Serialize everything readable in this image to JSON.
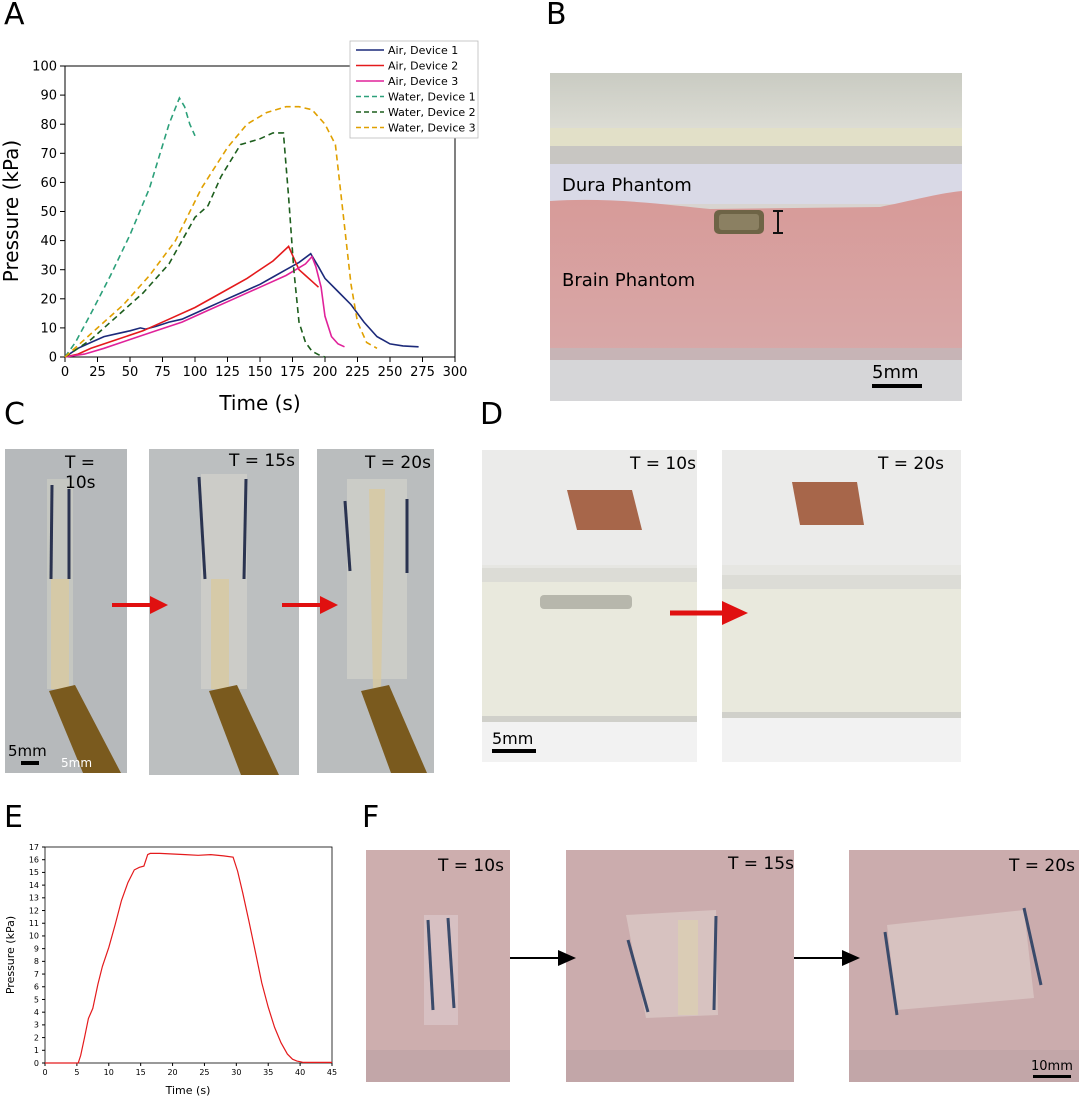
{
  "panels": {
    "A": "A",
    "B": "B",
    "C": "C",
    "D": "D",
    "E": "E",
    "F": "F"
  },
  "chart_data": [
    {
      "panel": "A",
      "type": "line",
      "xlabel": "Time (s)",
      "ylabel": "Pressure (kPa)",
      "xlim": [
        0,
        300
      ],
      "ylim": [
        0,
        100
      ],
      "xticks": [
        "0",
        "25",
        "50",
        "75",
        "100",
        "125",
        "150",
        "175",
        "200",
        "225",
        "250",
        "275",
        "300"
      ],
      "yticks": [
        "0",
        "10",
        "20",
        "30",
        "40",
        "50",
        "60",
        "70",
        "80",
        "90",
        "100"
      ],
      "legend_position": "top-right",
      "series": [
        {
          "name": "Air, Device 1",
          "color": "#1c2a7a",
          "dash": false,
          "x": [
            0,
            10,
            20,
            30,
            40,
            50,
            58,
            62,
            70,
            80,
            90,
            100,
            110,
            120,
            130,
            140,
            150,
            160,
            170,
            180,
            189,
            195,
            200,
            210,
            220,
            230,
            240,
            250,
            260,
            272
          ],
          "y": [
            0,
            3,
            5,
            7,
            8,
            9,
            10,
            9.6,
            10.5,
            12,
            13,
            15,
            17,
            19,
            21,
            23,
            25,
            27.5,
            30,
            32.5,
            35.5,
            31,
            27,
            22.5,
            18,
            12,
            7,
            4.5,
            3.8,
            3.5
          ]
        },
        {
          "name": "Air, Device 2",
          "color": "#e41a1c",
          "dash": false,
          "x": [
            0,
            10,
            20,
            40,
            60,
            80,
            100,
            120,
            140,
            160,
            172,
            176,
            180,
            185,
            190,
            195
          ],
          "y": [
            0,
            1,
            3,
            6,
            9,
            13,
            17,
            22,
            27,
            33,
            38,
            34,
            30,
            28,
            26,
            24
          ]
        },
        {
          "name": "Air, Device 3",
          "color": "#e0229a",
          "dash": false,
          "x": [
            0,
            15,
            30,
            50,
            70,
            90,
            110,
            130,
            150,
            170,
            185,
            190,
            193,
            197,
            200,
            205,
            210,
            215
          ],
          "y": [
            0,
            1,
            3,
            6,
            9,
            12,
            16,
            20,
            24,
            28,
            32,
            34.5,
            31,
            24,
            14,
            7,
            4.5,
            3.5
          ]
        },
        {
          "name": "Water, Device 1",
          "color": "#2ca07a",
          "dash": true,
          "x": [
            0,
            8,
            20,
            35,
            50,
            65,
            80,
            88,
            92,
            96,
            100
          ],
          "y": [
            0,
            5,
            15,
            28,
            42,
            58,
            80,
            89,
            86,
            80,
            76
          ]
        },
        {
          "name": "Water, Device 2",
          "color": "#1d5e1d",
          "dash": true,
          "x": [
            0,
            10,
            20,
            40,
            60,
            80,
            100,
            110,
            120,
            135,
            150,
            160,
            168,
            172,
            176,
            180,
            185,
            190,
            195,
            200
          ],
          "y": [
            0,
            3,
            6,
            14,
            22,
            32,
            48,
            52,
            62,
            73,
            75,
            77,
            77,
            55,
            30,
            12,
            5,
            2,
            0.8,
            0
          ]
        },
        {
          "name": "Water, Device 3",
          "color": "#e0a000",
          "dash": true,
          "x": [
            0,
            10,
            25,
            45,
            65,
            85,
            105,
            125,
            140,
            155,
            170,
            180,
            190,
            200,
            208,
            215,
            220,
            225,
            232,
            240
          ],
          "y": [
            0,
            4,
            10,
            18,
            28,
            40,
            58,
            72,
            80,
            84,
            86,
            86,
            85,
            80,
            73,
            45,
            25,
            12,
            5,
            3
          ]
        }
      ]
    },
    {
      "panel": "E",
      "type": "line",
      "xlabel": "Time (s)",
      "ylabel": "Pressure (kPa)",
      "xlim": [
        0,
        45
      ],
      "ylim": [
        0,
        17
      ],
      "xticks": [
        "0",
        "5",
        "10",
        "15",
        "20",
        "25",
        "30",
        "35",
        "40",
        "45"
      ],
      "yticks": [
        "0",
        "1",
        "2",
        "3",
        "4",
        "5",
        "6",
        "7",
        "8",
        "9",
        "10",
        "11",
        "12",
        "13",
        "14",
        "15",
        "16",
        "17"
      ],
      "series": [
        {
          "name": "Pressure",
          "color": "#e41a1c",
          "x": [
            0,
            5.2,
            5.6,
            6.2,
            6.8,
            7.5,
            8.3,
            9,
            10,
            11,
            12,
            13,
            14,
            14.8,
            15.5,
            16.1,
            16.5,
            17,
            18,
            20,
            22,
            24,
            26,
            28,
            29.5,
            30.2,
            31,
            32,
            33,
            34,
            35,
            36,
            37,
            38,
            38.8,
            39.5,
            40,
            40.5,
            45
          ],
          "y": [
            0,
            0,
            0.6,
            2,
            3.5,
            4.3,
            6.2,
            7.6,
            9.1,
            10.9,
            12.8,
            14.2,
            15.2,
            15.4,
            15.5,
            16.4,
            16.5,
            16.5,
            16.5,
            16.45,
            16.4,
            16.35,
            16.4,
            16.3,
            16.2,
            15.1,
            13.4,
            11.1,
            8.7,
            6.3,
            4.4,
            2.8,
            1.6,
            0.7,
            0.3,
            0.15,
            0.1,
            0.05,
            0.05
          ]
        }
      ]
    }
  ],
  "panelB": {
    "label_dura": "Dura Phantom",
    "label_brain": "Brain Phantom",
    "scale": "5mm"
  },
  "panelC": {
    "times": [
      "T = 10s",
      "T = 15s",
      "T = 20s"
    ],
    "scale": "5mm"
  },
  "panelD": {
    "times": [
      "T = 10s",
      "T = 20s"
    ],
    "scale": "5mm"
  },
  "panelF": {
    "times": [
      "T = 10s",
      "T = 15s",
      "T = 20s"
    ],
    "scale": "10mm"
  },
  "colors": {
    "arrow_red": "#e01010",
    "arrow_black": "#000000"
  }
}
